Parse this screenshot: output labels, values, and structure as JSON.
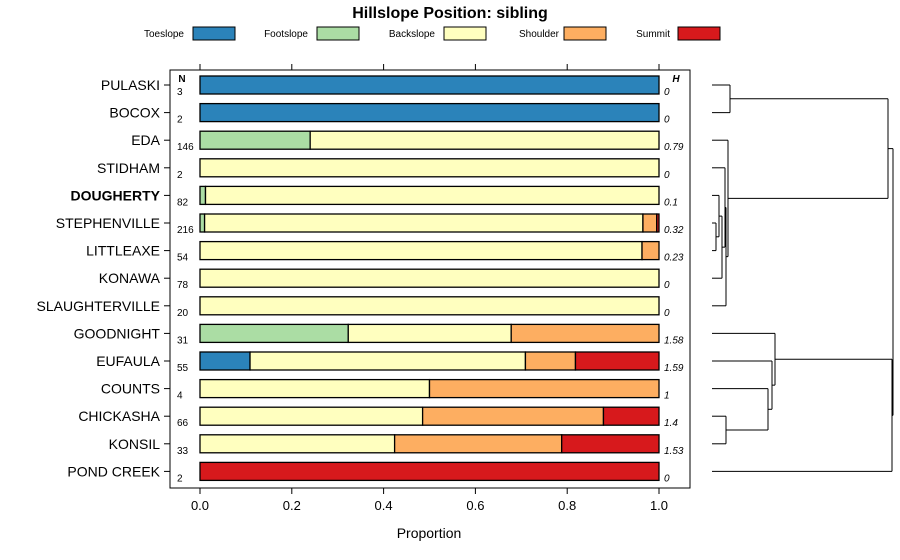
{
  "chart_data": {
    "type": "bar",
    "stacked": true,
    "orientation": "horizontal",
    "title": "Hillslope Position: sibling",
    "xlabel": "Proportion",
    "xlim": [
      0,
      1
    ],
    "xticks": [
      0.0,
      0.2,
      0.4,
      0.6,
      0.8,
      1.0
    ],
    "xtick_labels": [
      "0.0",
      "0.2",
      "0.4",
      "0.6",
      "0.8",
      "1.0"
    ],
    "n_header": "N",
    "h_header": "H",
    "legend": [
      {
        "label": "Toeslope",
        "color": "#2b83ba"
      },
      {
        "label": "Footslope",
        "color": "#abdda4"
      },
      {
        "label": "Backslope",
        "color": "#ffffbf"
      },
      {
        "label": "Shoulder",
        "color": "#fdae61"
      },
      {
        "label": "Summit",
        "color": "#d7191c"
      }
    ],
    "rows": [
      {
        "name": "PULASKI",
        "n": "3",
        "h": "0",
        "bold": false,
        "values": [
          1,
          0,
          0,
          0,
          0
        ]
      },
      {
        "name": "BOCOX",
        "n": "2",
        "h": "0",
        "bold": false,
        "values": [
          1,
          0,
          0,
          0,
          0
        ]
      },
      {
        "name": "EDA",
        "n": "146",
        "h": "0.79",
        "bold": false,
        "values": [
          0,
          0.24,
          0.76,
          0,
          0
        ]
      },
      {
        "name": "STIDHAM",
        "n": "2",
        "h": "0",
        "bold": false,
        "values": [
          0,
          0,
          1,
          0,
          0
        ]
      },
      {
        "name": "DOUGHERTY",
        "n": "82",
        "h": "0.1",
        "bold": true,
        "values": [
          0,
          0.012,
          0.988,
          0,
          0
        ]
      },
      {
        "name": "STEPHENVILLE",
        "n": "216",
        "h": "0.32",
        "bold": false,
        "values": [
          0,
          0.01,
          0.955,
          0.03,
          0.005
        ]
      },
      {
        "name": "LITTLEAXE",
        "n": "54",
        "h": "0.23",
        "bold": false,
        "values": [
          0,
          0,
          0.963,
          0.037,
          0
        ]
      },
      {
        "name": "KONAWA",
        "n": "78",
        "h": "0",
        "bold": false,
        "values": [
          0,
          0,
          1,
          0,
          0
        ]
      },
      {
        "name": "SLAUGHTERVILLE",
        "n": "20",
        "h": "0",
        "bold": false,
        "values": [
          0,
          0,
          1,
          0,
          0
        ]
      },
      {
        "name": "GOODNIGHT",
        "n": "31",
        "h": "1.58",
        "bold": false,
        "values": [
          0,
          0.323,
          0.355,
          0.322,
          0
        ]
      },
      {
        "name": "EUFAULA",
        "n": "55",
        "h": "1.59",
        "bold": false,
        "values": [
          0.109,
          0,
          0.6,
          0.109,
          0.182
        ]
      },
      {
        "name": "COUNTS",
        "n": "4",
        "h": "1",
        "bold": false,
        "values": [
          0,
          0,
          0.5,
          0.5,
          0
        ]
      },
      {
        "name": "CHICKASHA",
        "n": "66",
        "h": "1.4",
        "bold": false,
        "values": [
          0,
          0,
          0.485,
          0.394,
          0.121
        ]
      },
      {
        "name": "KONSIL",
        "n": "33",
        "h": "1.53",
        "bold": false,
        "values": [
          0,
          0,
          0.424,
          0.364,
          0.212
        ]
      },
      {
        "name": "POND CREEK",
        "n": "2",
        "h": "0",
        "bold": false,
        "values": [
          0,
          0,
          0,
          0,
          1
        ]
      }
    ]
  }
}
